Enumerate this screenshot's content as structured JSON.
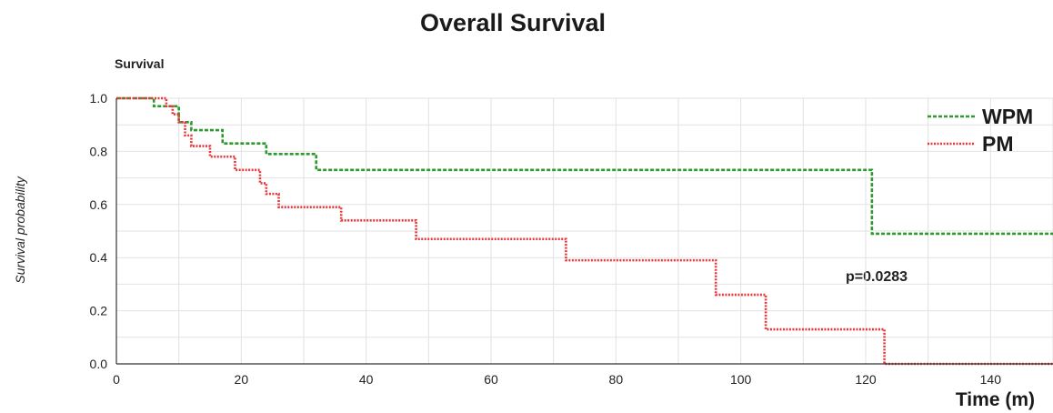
{
  "chart_data": {
    "type": "line",
    "title": "Overall Survival",
    "subtitle": "Survival",
    "xlabel": "Time (m)",
    "ylabel": "Survival probability",
    "xlim": [
      0,
      150
    ],
    "ylim": [
      0,
      1.0
    ],
    "x_ticks": [
      0,
      20,
      40,
      60,
      80,
      100,
      120,
      140
    ],
    "y_ticks": [
      0.0,
      0.2,
      0.4,
      0.6,
      0.8,
      1.0
    ],
    "x_tick_labels": [
      "0",
      "20",
      "40",
      "60",
      "80",
      "100",
      "120",
      "140"
    ],
    "y_tick_labels": [
      "0.0",
      "0.2",
      "0.4",
      "0.6",
      "0.8",
      "1.0"
    ],
    "grid": true,
    "legend_position": "top-right",
    "annotation": "p=0.0283",
    "series": [
      {
        "name": "WPM",
        "color": "#2e9a2e",
        "style": "dashed-step",
        "x": [
          0,
          6,
          9,
          10,
          12,
          14,
          17,
          24,
          32,
          121,
          150
        ],
        "y": [
          1.0,
          0.97,
          0.97,
          0.91,
          0.88,
          0.88,
          0.83,
          0.79,
          0.73,
          0.49,
          0.49
        ]
      },
      {
        "name": "PM",
        "color": "#e8383b",
        "style": "dotted-step",
        "x": [
          0,
          8,
          9,
          10,
          11,
          12,
          15,
          19,
          23,
          24,
          26,
          36,
          48,
          72,
          96,
          104,
          123,
          150
        ],
        "y": [
          1.0,
          0.97,
          0.94,
          0.91,
          0.86,
          0.82,
          0.78,
          0.73,
          0.68,
          0.64,
          0.59,
          0.54,
          0.47,
          0.39,
          0.26,
          0.13,
          0.0,
          0.0
        ]
      }
    ]
  }
}
